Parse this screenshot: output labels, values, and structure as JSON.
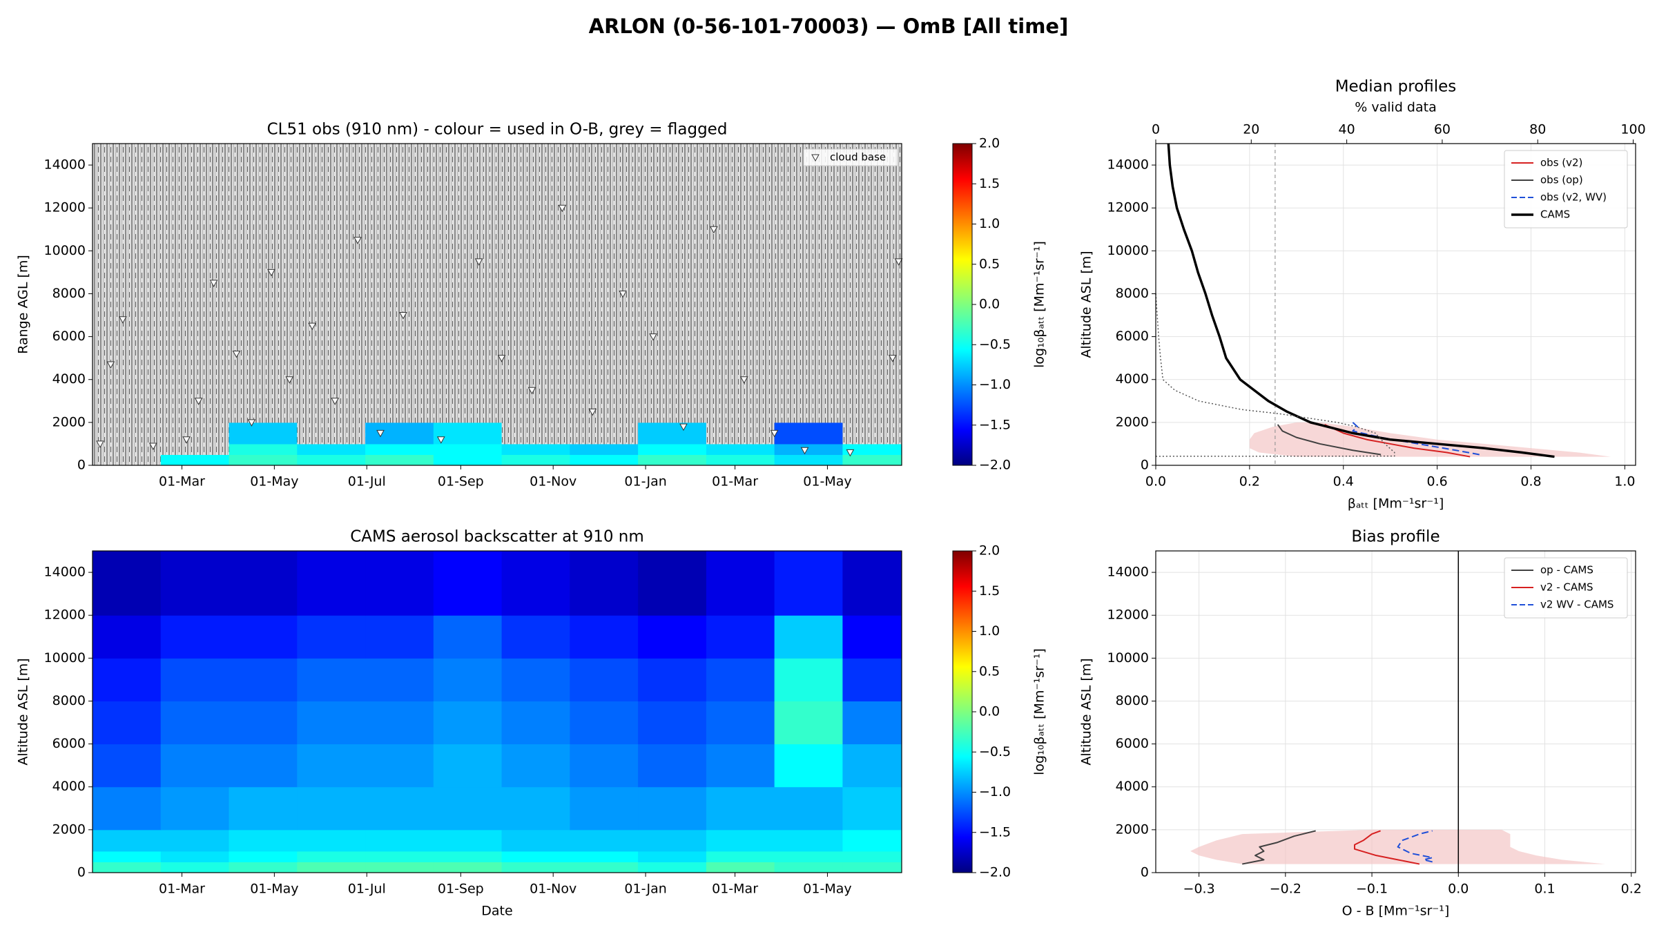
{
  "title": "ARLON (0-56-101-70003) — OmB [All time]",
  "chart_data": [
    {
      "type": "heatmap",
      "title": "CL51 obs (910 nm) - colour = used in O-B, grey = flagged",
      "ylabel": "Range AGL [m]",
      "xlim": [
        0,
        534
      ],
      "xticks": [
        {
          "value": 59,
          "label": "01-Mar"
        },
        {
          "value": 120,
          "label": "01-May"
        },
        {
          "value": 181,
          "label": "01-Jul"
        },
        {
          "value": 243,
          "label": "01-Sep"
        },
        {
          "value": 304,
          "label": "01-Nov"
        },
        {
          "value": 365,
          "label": "01-Jan"
        },
        {
          "value": 424,
          "label": "01-Mar"
        },
        {
          "value": 485,
          "label": "01-May"
        }
      ],
      "ylim": [
        0,
        15000
      ],
      "yticks": [
        0,
        2000,
        4000,
        6000,
        8000,
        10000,
        12000,
        14000
      ],
      "x_edges": [
        0,
        45,
        90,
        135,
        180,
        225,
        270,
        315,
        360,
        405,
        450,
        495,
        534
      ],
      "y_edges": [
        0,
        500,
        1000,
        2000,
        4000,
        6000,
        8000,
        10000,
        12000,
        15000
      ],
      "z": [
        [
          null,
          -0.5,
          -0.3,
          -0.4,
          -0.3,
          -0.5,
          -0.4,
          -0.5,
          -0.3,
          -0.4,
          -0.6,
          -0.3
        ],
        [
          null,
          null,
          -0.4,
          -0.6,
          -0.5,
          -0.5,
          -0.6,
          -0.7,
          -0.5,
          -0.6,
          -0.8,
          -0.5
        ],
        [
          null,
          null,
          -0.7,
          null,
          -0.8,
          -0.6,
          null,
          null,
          -0.7,
          null,
          -1.2,
          null
        ],
        [
          null,
          null,
          null,
          null,
          null,
          null,
          null,
          null,
          null,
          null,
          null,
          null
        ],
        [
          null,
          null,
          null,
          null,
          null,
          null,
          null,
          null,
          null,
          null,
          null,
          null
        ],
        [
          null,
          null,
          null,
          null,
          null,
          null,
          null,
          null,
          null,
          null,
          null,
          null
        ],
        [
          null,
          null,
          null,
          null,
          null,
          null,
          null,
          null,
          null,
          null,
          null,
          null
        ],
        [
          null,
          null,
          null,
          null,
          null,
          null,
          null,
          null,
          null,
          null,
          null,
          null
        ],
        [
          null,
          null,
          null,
          null,
          null,
          null,
          null,
          null,
          null,
          null,
          null,
          null
        ]
      ],
      "colormap": "jet",
      "clim": [
        -2,
        2
      ],
      "flagged_color": "#9a9a9a",
      "colorbar": {
        "label": "log₁₀βₐₜₜ [Mm⁻¹sr⁻¹]",
        "ticks": [
          {
            "value": -2,
            "label": "−2.0"
          },
          {
            "value": -1.5,
            "label": "−1.5"
          },
          {
            "value": -1,
            "label": "−1.0"
          },
          {
            "value": -0.5,
            "label": "−0.5"
          },
          {
            "value": 0,
            "label": "0.0"
          },
          {
            "value": 0.5,
            "label": "0.5"
          },
          {
            "value": 1,
            "label": "1.0"
          },
          {
            "value": 1.5,
            "label": "1.5"
          },
          {
            "value": 2,
            "label": "2.0"
          }
        ]
      },
      "legend": "upper right",
      "series": [
        {
          "name": "cloud base",
          "marker": "triangle-down",
          "color": "#ffffff",
          "x": [
            5,
            12,
            20,
            40,
            62,
            70,
            80,
            95,
            105,
            118,
            130,
            145,
            160,
            175,
            190,
            205,
            230,
            255,
            270,
            290,
            310,
            330,
            350,
            370,
            390,
            410,
            430,
            450,
            470,
            500,
            528,
            532
          ],
          "values": [
            1000,
            4700,
            6800,
            900,
            1200,
            3000,
            8500,
            5200,
            2000,
            9000,
            4000,
            6500,
            3000,
            10500,
            1500,
            7000,
            1200,
            9500,
            5000,
            3500,
            12000,
            2500,
            8000,
            6000,
            1800,
            11000,
            4000,
            1500,
            700,
            600,
            5000,
            9500
          ]
        }
      ]
    },
    {
      "type": "heatmap",
      "title": "CAMS aerosol backscatter at 910 nm",
      "xlabel": "Date",
      "ylabel": "Altitude ASL [m]",
      "xlim": [
        0,
        534
      ],
      "xticks": [
        {
          "value": 59,
          "label": "01-Mar"
        },
        {
          "value": 120,
          "label": "01-May"
        },
        {
          "value": 181,
          "label": "01-Jul"
        },
        {
          "value": 243,
          "label": "01-Sep"
        },
        {
          "value": 304,
          "label": "01-Nov"
        },
        {
          "value": 365,
          "label": "01-Jan"
        },
        {
          "value": 424,
          "label": "01-Mar"
        },
        {
          "value": 485,
          "label": "01-May"
        }
      ],
      "ylim": [
        0,
        15000
      ],
      "yticks": [
        0,
        2000,
        4000,
        6000,
        8000,
        10000,
        12000,
        14000
      ],
      "x_edges": [
        0,
        45,
        90,
        135,
        180,
        225,
        270,
        315,
        360,
        405,
        450,
        495,
        534
      ],
      "y_edges": [
        0,
        500,
        1000,
        2000,
        4000,
        6000,
        8000,
        10000,
        12000,
        15000
      ],
      "z": [
        [
          -0.3,
          -0.4,
          -0.3,
          -0.2,
          -0.2,
          -0.2,
          -0.3,
          -0.3,
          -0.4,
          -0.2,
          -0.3,
          -0.3
        ],
        [
          -0.5,
          -0.6,
          -0.5,
          -0.4,
          -0.4,
          -0.4,
          -0.5,
          -0.5,
          -0.6,
          -0.4,
          -0.4,
          -0.4
        ],
        [
          -0.7,
          -0.7,
          -0.6,
          -0.6,
          -0.6,
          -0.6,
          -0.7,
          -0.7,
          -0.7,
          -0.6,
          -0.6,
          -0.5
        ],
        [
          -1.0,
          -0.9,
          -0.8,
          -0.8,
          -0.8,
          -0.8,
          -0.8,
          -0.9,
          -0.9,
          -0.8,
          -0.8,
          -0.7
        ],
        [
          -1.2,
          -1.0,
          -1.0,
          -0.9,
          -0.9,
          -0.8,
          -0.9,
          -1.0,
          -1.1,
          -1.0,
          -0.5,
          -0.8
        ],
        [
          -1.3,
          -1.1,
          -1.1,
          -1.0,
          -1.0,
          -0.9,
          -1.0,
          -1.1,
          -1.2,
          -1.1,
          -0.3,
          -1.0
        ],
        [
          -1.4,
          -1.2,
          -1.2,
          -1.1,
          -1.1,
          -1.0,
          -1.1,
          -1.2,
          -1.3,
          -1.2,
          -0.4,
          -1.3
        ],
        [
          -1.6,
          -1.4,
          -1.4,
          -1.3,
          -1.3,
          -1.1,
          -1.3,
          -1.4,
          -1.5,
          -1.4,
          -0.7,
          -1.5
        ],
        [
          -1.8,
          -1.7,
          -1.7,
          -1.6,
          -1.6,
          -1.5,
          -1.6,
          -1.7,
          -1.8,
          -1.6,
          -1.4,
          -1.7
        ]
      ],
      "colormap": "jet",
      "clim": [
        -2,
        2
      ],
      "colorbar": {
        "label": "log₁₀βₐₜₜ [Mm⁻¹sr⁻¹]",
        "ticks": [
          {
            "value": -2,
            "label": "−2.0"
          },
          {
            "value": -1.5,
            "label": "−1.5"
          },
          {
            "value": -1,
            "label": "−1.0"
          },
          {
            "value": -0.5,
            "label": "−0.5"
          },
          {
            "value": 0,
            "label": "0.0"
          },
          {
            "value": 0.5,
            "label": "0.5"
          },
          {
            "value": 1,
            "label": "1.0"
          },
          {
            "value": 1.5,
            "label": "1.5"
          },
          {
            "value": 2,
            "label": "2.0"
          }
        ]
      }
    },
    {
      "type": "line",
      "title": "Median profiles",
      "xlabel": "βₐₜₜ [Mm⁻¹sr⁻¹]",
      "x2label": "% valid data",
      "ylabel": "Altitude ASL [m]",
      "xlim": [
        0,
        1.023
      ],
      "xticks": [
        {
          "value": 0,
          "label": "0.0"
        },
        {
          "value": 0.2,
          "label": "0.2"
        },
        {
          "value": 0.4,
          "label": "0.4"
        },
        {
          "value": 0.6,
          "label": "0.6"
        },
        {
          "value": 0.8,
          "label": "0.8"
        },
        {
          "value": 1,
          "label": "1.0"
        }
      ],
      "x2lim": [
        0,
        100.5
      ],
      "x2ticks": [
        0,
        20,
        40,
        60,
        80,
        100
      ],
      "x2_reference": 25,
      "ylim": [
        0,
        15000
      ],
      "yticks": [
        0,
        2000,
        4000,
        6000,
        8000,
        10000,
        12000,
        14000
      ],
      "grid": true,
      "legend": "upper right",
      "band": {
        "color": "#f4c6c6",
        "y": [
          400,
          600,
          800,
          1000,
          1200,
          1500,
          1800,
          2000
        ],
        "lower": [
          0.3,
          0.22,
          0.2,
          0.2,
          0.2,
          0.21,
          0.25,
          0.3
        ],
        "upper": [
          0.97,
          0.9,
          0.8,
          0.7,
          0.6,
          0.5,
          0.42,
          0.35
        ]
      },
      "series": [
        {
          "name": "obs (v2)",
          "color": "#d62020",
          "width": 2,
          "y": [
            400,
            600,
            800,
            1000,
            1200,
            1500,
            1900
          ],
          "values": [
            0.67,
            0.62,
            0.55,
            0.5,
            0.45,
            0.4,
            0.36
          ]
        },
        {
          "name": "obs (op)",
          "color": "#404040",
          "width": 2,
          "y": [
            500,
            700,
            1000,
            1300,
            1600,
            1900
          ],
          "values": [
            0.48,
            0.42,
            0.35,
            0.3,
            0.27,
            0.26
          ]
        },
        {
          "name": "obs (v2, WV)",
          "color": "#1f4fd8",
          "width": 2,
          "dash": true,
          "y": [
            500,
            700,
            1000,
            1300,
            1600,
            1800,
            2000
          ],
          "values": [
            0.69,
            0.64,
            0.56,
            0.48,
            0.42,
            0.43,
            0.42
          ]
        },
        {
          "name": "CAMS",
          "color": "#000000",
          "width": 3.5,
          "y": [
            400,
            600,
            800,
            1000,
            1200,
            1500,
            2000,
            2500,
            3000,
            4000,
            5000,
            6000,
            7000,
            8000,
            9000,
            10000,
            11000,
            12000,
            13000,
            14000,
            15000
          ],
          "values": [
            0.85,
            0.78,
            0.7,
            0.6,
            0.5,
            0.42,
            0.33,
            0.28,
            0.24,
            0.18,
            0.15,
            0.136,
            0.12,
            0.106,
            0.09,
            0.077,
            0.06,
            0.045,
            0.036,
            0.03,
            0.027
          ]
        },
        {
          "axis": "x2",
          "color": "#555555",
          "width": 1.5,
          "dotted": true,
          "y": [
            8000,
            7000,
            6000,
            5000,
            4000,
            3800,
            3500,
            3000,
            2600,
            2400,
            2200,
            2000,
            1800,
            1500,
            1000,
            600,
            430,
            420
          ],
          "values": [
            0,
            0.3,
            0.6,
            1,
            1.5,
            2.5,
            4,
            9,
            18,
            26,
            32,
            38,
            42,
            46,
            48,
            50,
            50,
            0
          ]
        }
      ]
    },
    {
      "type": "line",
      "title": "Bias profile",
      "xlabel": "O - B [Mm⁻¹sr⁻¹]",
      "ylabel": "Altitude ASL [m]",
      "xlim": [
        -0.35,
        0.205
      ],
      "xticks": [
        {
          "value": -0.3,
          "label": "−0.3"
        },
        {
          "value": -0.2,
          "label": "−0.2"
        },
        {
          "value": -0.1,
          "label": "−0.1"
        },
        {
          "value": 0,
          "label": "0.0"
        },
        {
          "value": 0.1,
          "label": "0.1"
        },
        {
          "value": 0.2,
          "label": "0.2"
        }
      ],
      "x_reference": 0,
      "ylim": [
        0,
        15000
      ],
      "yticks": [
        0,
        2000,
        4000,
        6000,
        8000,
        10000,
        12000,
        14000
      ],
      "grid": true,
      "legend": "upper right",
      "band": {
        "color": "#f4c6c6",
        "y": [
          400,
          600,
          800,
          1000,
          1200,
          1500,
          1800,
          2000
        ],
        "lower": [
          -0.25,
          -0.28,
          -0.3,
          -0.31,
          -0.3,
          -0.28,
          -0.25,
          -0.1
        ],
        "upper": [
          0.17,
          0.12,
          0.09,
          0.07,
          0.06,
          0.06,
          0.06,
          0.05
        ]
      },
      "series": [
        {
          "name": "op - CAMS",
          "color": "#404040",
          "width": 2,
          "y": [
            400,
            600,
            800,
            1000,
            1200,
            1400,
            1700,
            1950
          ],
          "values": [
            -0.25,
            -0.225,
            -0.235,
            -0.225,
            -0.23,
            -0.21,
            -0.19,
            -0.165
          ]
        },
        {
          "name": "v2 - CAMS",
          "color": "#d62020",
          "width": 2,
          "y": [
            400,
            600,
            800,
            1100,
            1300,
            1500,
            1800,
            1950
          ],
          "values": [
            -0.045,
            -0.07,
            -0.095,
            -0.12,
            -0.12,
            -0.11,
            -0.1,
            -0.09
          ]
        },
        {
          "name": "v2 WV - CAMS",
          "color": "#1f4fd8",
          "width": 2,
          "dash": true,
          "y": [
            500,
            600,
            700,
            900,
            1200,
            1500,
            1800,
            1950
          ],
          "values": [
            -0.03,
            -0.04,
            -0.03,
            -0.055,
            -0.07,
            -0.065,
            -0.045,
            -0.03
          ]
        }
      ]
    }
  ]
}
